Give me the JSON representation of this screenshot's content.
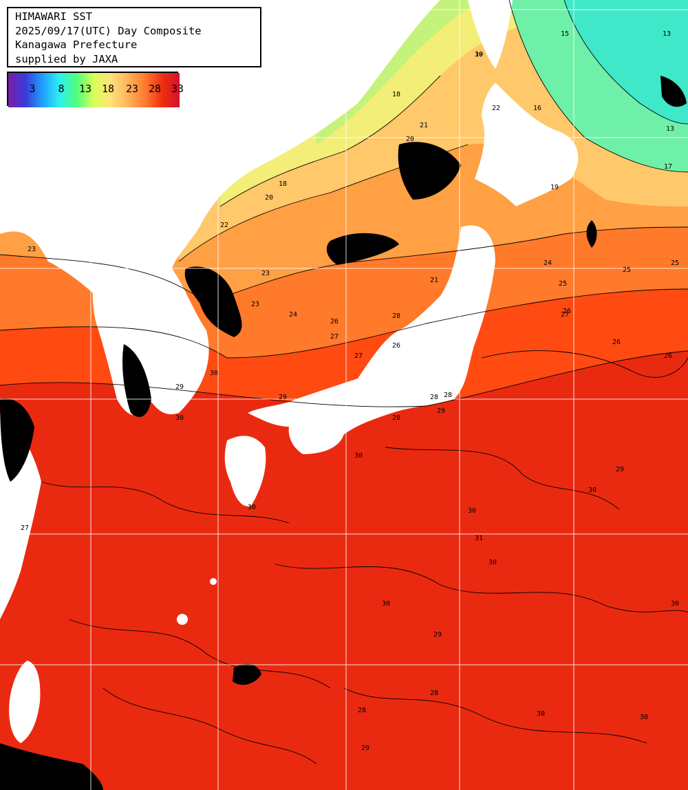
{
  "header": {
    "line1": "HIMAWARI SST",
    "line2": "2025/09/17(UTC) Day Composite",
    "line3": "Kanagawa Prefecture",
    "line4": "supplied by JAXA"
  },
  "legend": {
    "ticks": [
      "3",
      "8",
      "13",
      "18",
      "23",
      "28",
      "33"
    ],
    "tick_values": [
      3,
      8,
      13,
      18,
      23,
      28,
      33
    ],
    "colors": [
      "#7a1fa8",
      "#3a3ad8",
      "#1f9fff",
      "#2ef0f0",
      "#4fff7a",
      "#d8ff5a",
      "#ffe27a",
      "#ffb25a",
      "#ff7a2e",
      "#ee2e10",
      "#d4102e"
    ]
  },
  "map": {
    "colors": {
      "land": "#ffffff",
      "cloud": "#000000",
      "sea_30": "#ea2a10",
      "sea_28": "#ff4a12",
      "sea_26": "#ff7a2a",
      "sea_24": "#ffa044",
      "sea_22": "#ffc86a",
      "sea_20": "#f2ee78",
      "sea_18": "#c4f27a",
      "sea_15": "#6ef0a8",
      "sea_13": "#3ee8c8",
      "grid": "#ffffff",
      "contour": "#000000"
    },
    "contour_labels": [
      "19",
      "15",
      "13",
      "18",
      "21",
      "20",
      "22",
      "19",
      "16",
      "13",
      "17",
      "18",
      "20",
      "23",
      "22",
      "23",
      "21",
      "24",
      "25",
      "23",
      "24",
      "25",
      "26",
      "27",
      "28",
      "26",
      "27",
      "29",
      "30",
      "29",
      "30",
      "30",
      "30",
      "30",
      "30",
      "31",
      "30",
      "30",
      "29",
      "28",
      "30",
      "29",
      "30",
      "30",
      "27",
      "28",
      "28",
      "29",
      "26",
      "26",
      "25",
      "26",
      "27",
      "28",
      "28",
      "29",
      "30"
    ]
  }
}
